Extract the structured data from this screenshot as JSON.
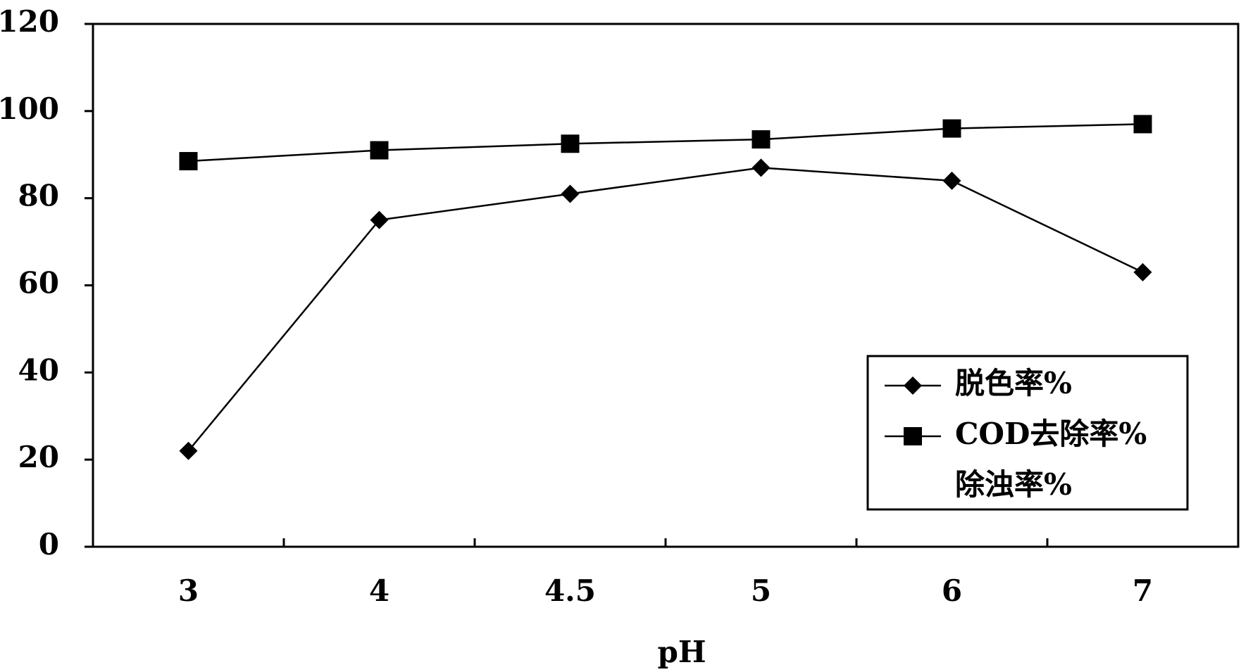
{
  "chart_data": {
    "type": "line",
    "x_label": "pH",
    "categories": [
      "3",
      "4",
      "4.5",
      "5",
      "6",
      "7"
    ],
    "series": [
      {
        "name": "脱色率%",
        "color": "#000000",
        "marker": "diamond",
        "values": [
          22,
          75,
          81,
          87,
          84,
          63
        ]
      },
      {
        "name": "COD去除率%",
        "color": "#000000",
        "marker": "square",
        "values": [
          88.5,
          91,
          92.5,
          93.5,
          96,
          97
        ]
      },
      {
        "name": "除浊率%",
        "color": "#000000",
        "marker": "none",
        "values": [
          null,
          null,
          null,
          null,
          null,
          null
        ]
      }
    ],
    "ylim": [
      0,
      120
    ],
    "yticks": [
      0,
      20,
      40,
      60,
      80,
      100,
      120
    ],
    "grid": false,
    "legend": "lower right"
  }
}
